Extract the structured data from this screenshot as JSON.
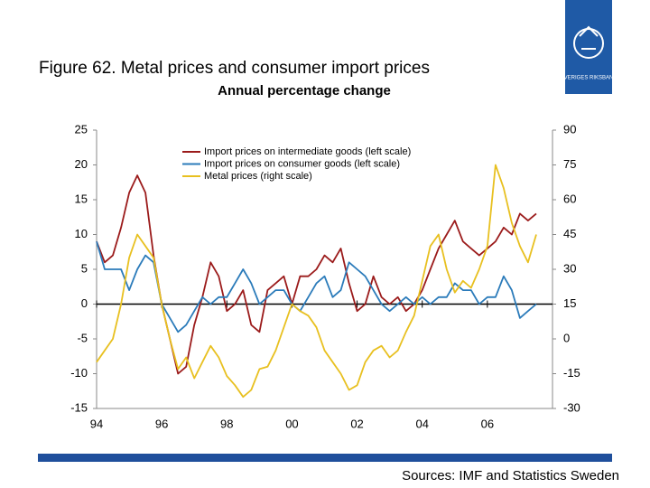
{
  "logo": {
    "text": "SVERIGES RIKSBANK"
  },
  "chart_data": {
    "type": "line",
    "title": "Figure 62. Metal prices and consumer import prices",
    "subtitle": "Annual percentage change",
    "source": "Sources: IMF and Statistics Sweden",
    "legend": "upper left",
    "x": [
      1994,
      1994.25,
      1994.5,
      1994.75,
      1995,
      1995.25,
      1995.5,
      1995.75,
      1996,
      1996.25,
      1996.5,
      1996.75,
      1997,
      1997.25,
      1997.5,
      1997.75,
      1998,
      1998.25,
      1998.5,
      1998.75,
      1999,
      1999.25,
      1999.5,
      1999.75,
      2000,
      2000.25,
      2000.5,
      2000.75,
      2001,
      2001.25,
      2001.5,
      2001.75,
      2002,
      2002.25,
      2002.5,
      2002.75,
      2003,
      2003.25,
      2003.5,
      2003.75,
      2004,
      2004.25,
      2004.5,
      2004.75,
      2005,
      2005.25,
      2005.5,
      2005.75,
      2006,
      2006.25,
      2006.5,
      2006.75,
      2007,
      2007.25,
      2007.5
    ],
    "xlim": [
      1994,
      2008
    ],
    "xticks": [
      {
        "value": 1994,
        "label": "94"
      },
      {
        "value": 1996,
        "label": "96"
      },
      {
        "value": 1998,
        "label": "98"
      },
      {
        "value": 2000,
        "label": "00"
      },
      {
        "value": 2002,
        "label": "02"
      },
      {
        "value": 2004,
        "label": "04"
      },
      {
        "value": 2006,
        "label": "06"
      }
    ],
    "ylim": [
      -15,
      25
    ],
    "yticks": [
      -15,
      -10,
      -5,
      0,
      5,
      10,
      15,
      20,
      25
    ],
    "y2lim": [
      -30,
      90
    ],
    "y2ticks": [
      -30,
      -15,
      0,
      15,
      30,
      45,
      60,
      75,
      90
    ],
    "series": [
      {
        "name": "Import prices on intermediate goods (left scale)",
        "color": "#9b1b1b",
        "values": [
          9,
          6,
          7,
          11,
          16,
          18.5,
          16,
          7,
          0,
          -5,
          -10,
          -9,
          -3,
          1,
          6,
          4,
          -1,
          0,
          2,
          -3,
          -4,
          2,
          3,
          4,
          0,
          4,
          4,
          5,
          7,
          6,
          8,
          3,
          -1,
          0,
          4,
          1,
          0,
          1,
          -1,
          0,
          2,
          5,
          8,
          10,
          12,
          9,
          8,
          7,
          8,
          9,
          11,
          10,
          13,
          12,
          13
        ]
      },
      {
        "name": "Import prices on consumer goods (left scale)",
        "color": "#2b7bba",
        "values": [
          9,
          5,
          5,
          5,
          2,
          5,
          7,
          6,
          0,
          -2,
          -4,
          -3,
          -1,
          1,
          0,
          1,
          1,
          3,
          5,
          3,
          0,
          1,
          2,
          2,
          0,
          -1,
          1,
          3,
          4,
          1,
          2,
          6,
          5,
          4,
          2,
          0,
          -1,
          0,
          1,
          0,
          1,
          0,
          1,
          1,
          3,
          2,
          2,
          0,
          1,
          1,
          4,
          2,
          -2,
          -1,
          0
        ]
      },
      {
        "name": "Metal prices (right scale)",
        "color": "#e8c020",
        "axis": "y2",
        "values": [
          -10,
          -5,
          0,
          15,
          35,
          45,
          40,
          35,
          15,
          0,
          -13,
          -8,
          -17,
          -10,
          -3,
          -8,
          -16,
          -20,
          -25,
          -22,
          -13,
          -12,
          -5,
          5,
          15,
          12,
          10,
          5,
          -5,
          -10,
          -15,
          -22,
          -20,
          -10,
          -5,
          -3,
          -8,
          -5,
          3,
          10,
          25,
          40,
          45,
          30,
          20,
          25,
          22,
          30,
          40,
          75,
          65,
          50,
          40,
          33,
          45
        ]
      }
    ]
  }
}
